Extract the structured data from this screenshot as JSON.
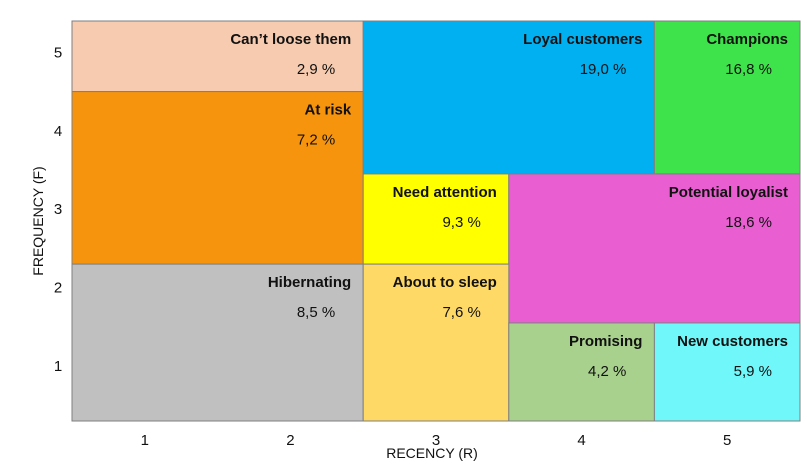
{
  "chart_data": {
    "type": "heatmap",
    "xlabel": "RECENCY (R)",
    "ylabel": "FREQUENCY (F)",
    "xlim": [
      0.5,
      5.5
    ],
    "ylim": [
      0.3,
      5.4
    ],
    "x_ticks": [
      "1",
      "2",
      "3",
      "4",
      "5"
    ],
    "y_ticks": [
      "1",
      "2",
      "3",
      "4",
      "5"
    ],
    "segments": [
      {
        "id": "cant-loose-them",
        "label": "Can’t loose them",
        "value": "2,9 %",
        "color": "#f7cbb0",
        "r": [
          0.5,
          2.5
        ],
        "f": [
          4.5,
          5.4
        ]
      },
      {
        "id": "at-risk",
        "label": "At risk",
        "value": "7,2 %",
        "color": "#f7940d",
        "r": [
          0.5,
          2.5
        ],
        "f": [
          2.3,
          4.5
        ]
      },
      {
        "id": "hibernating",
        "label": "Hibernating",
        "value": "8,5 %",
        "color": "#c0c0c0",
        "r": [
          0.5,
          2.5
        ],
        "f": [
          0.3,
          2.3
        ]
      },
      {
        "id": "loyal-customers",
        "label": "Loyal customers",
        "value": "19,0 %",
        "color": "#00b0f0",
        "r": [
          2.5,
          4.5
        ],
        "f": [
          3.45,
          5.4
        ]
      },
      {
        "id": "champions",
        "label": "Champions",
        "value": "16,8 %",
        "color": "#3ee24a",
        "r": [
          4.5,
          5.5
        ],
        "f": [
          3.45,
          5.4
        ]
      },
      {
        "id": "need-attention",
        "label": "Need attention",
        "value": "9,3 %",
        "color": "#ffff00",
        "r": [
          2.5,
          3.5
        ],
        "f": [
          2.3,
          3.45
        ]
      },
      {
        "id": "potential-loyalist",
        "label": "Potential loyalist",
        "value": "18,6 %",
        "color": "#e95fd2",
        "r": [
          3.5,
          5.5
        ],
        "f": [
          1.55,
          3.45
        ]
      },
      {
        "id": "about-to-sleep",
        "label": "About to sleep",
        "value": "7,6 %",
        "color": "#ffd966",
        "r": [
          2.5,
          3.5
        ],
        "f": [
          0.3,
          2.3
        ]
      },
      {
        "id": "promising",
        "label": "Promising",
        "value": "4,2 %",
        "color": "#a9d18e",
        "r": [
          3.5,
          4.5
        ],
        "f": [
          0.3,
          1.55
        ]
      },
      {
        "id": "new-customers",
        "label": "New customers",
        "value": "5,9 %",
        "color": "#6ff7fa",
        "r": [
          4.5,
          5.5
        ],
        "f": [
          0.3,
          1.55
        ]
      }
    ]
  }
}
